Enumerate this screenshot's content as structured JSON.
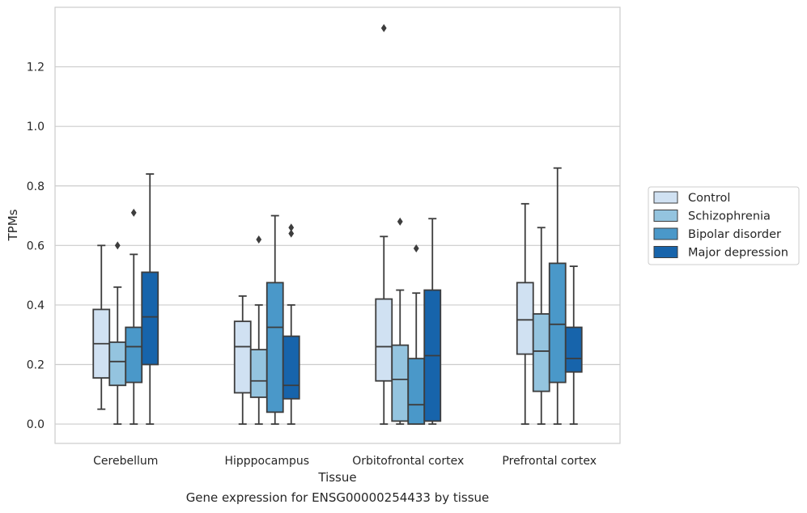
{
  "caption": "Gene expression for ENSG00000254433 by tissue",
  "chart_data": {
    "type": "box",
    "xlabel": "Tissue",
    "ylabel": "TPMs",
    "ylim": [
      -0.065,
      1.4
    ],
    "yticks": [
      0.0,
      0.2,
      0.4,
      0.6,
      0.8,
      1.0,
      1.2
    ],
    "ytick_labels": [
      "0.0",
      "0.2",
      "0.4",
      "0.6",
      "0.8",
      "1.0",
      "1.2"
    ],
    "grid": true,
    "legend_position": "right",
    "categories": [
      "Cerebellum",
      "Hipppocampus",
      "Orbitofrontal cortex",
      "Prefrontal cortex"
    ],
    "series": [
      {
        "name": "Control",
        "color": "#d0e1f2",
        "boxes": [
          {
            "whislo": 0.05,
            "q1": 0.155,
            "med": 0.27,
            "q3": 0.385,
            "whishi": 0.6,
            "fliers": []
          },
          {
            "whislo": 0.0,
            "q1": 0.105,
            "med": 0.26,
            "q3": 0.345,
            "whishi": 0.43,
            "fliers": []
          },
          {
            "whislo": 0.0,
            "q1": 0.145,
            "med": 0.26,
            "q3": 0.42,
            "whishi": 0.63,
            "fliers": [
              1.33
            ]
          },
          {
            "whislo": 0.0,
            "q1": 0.235,
            "med": 0.35,
            "q3": 0.475,
            "whishi": 0.74,
            "fliers": []
          }
        ]
      },
      {
        "name": "Schizophrenia",
        "color": "#94c4df",
        "boxes": [
          {
            "whislo": 0.0,
            "q1": 0.13,
            "med": 0.21,
            "q3": 0.275,
            "whishi": 0.46,
            "fliers": [
              0.6
            ]
          },
          {
            "whislo": 0.0,
            "q1": 0.09,
            "med": 0.145,
            "q3": 0.25,
            "whishi": 0.4,
            "fliers": [
              0.62
            ]
          },
          {
            "whislo": 0.0,
            "q1": 0.01,
            "med": 0.15,
            "q3": 0.265,
            "whishi": 0.45,
            "fliers": [
              0.68
            ]
          },
          {
            "whislo": 0.0,
            "q1": 0.11,
            "med": 0.245,
            "q3": 0.37,
            "whishi": 0.66,
            "fliers": []
          }
        ]
      },
      {
        "name": "Bipolar disorder",
        "color": "#4a98c9",
        "boxes": [
          {
            "whislo": 0.0,
            "q1": 0.14,
            "med": 0.26,
            "q3": 0.325,
            "whishi": 0.57,
            "fliers": [
              0.71
            ]
          },
          {
            "whislo": 0.0,
            "q1": 0.04,
            "med": 0.325,
            "q3": 0.475,
            "whishi": 0.7,
            "fliers": []
          },
          {
            "whislo": 0.0,
            "q1": 0.0,
            "med": 0.065,
            "q3": 0.22,
            "whishi": 0.44,
            "fliers": [
              0.59
            ]
          },
          {
            "whislo": 0.0,
            "q1": 0.14,
            "med": 0.335,
            "q3": 0.54,
            "whishi": 0.86,
            "fliers": []
          }
        ]
      },
      {
        "name": "Major depression",
        "color": "#1764ab",
        "boxes": [
          {
            "whislo": 0.0,
            "q1": 0.2,
            "med": 0.36,
            "q3": 0.51,
            "whishi": 0.84,
            "fliers": []
          },
          {
            "whislo": 0.0,
            "q1": 0.085,
            "med": 0.13,
            "q3": 0.295,
            "whishi": 0.4,
            "fliers": [
              0.64,
              0.66
            ]
          },
          {
            "whislo": 0.0,
            "q1": 0.01,
            "med": 0.23,
            "q3": 0.45,
            "whishi": 0.69,
            "fliers": []
          },
          {
            "whislo": 0.0,
            "q1": 0.175,
            "med": 0.22,
            "q3": 0.325,
            "whishi": 0.53,
            "fliers": []
          }
        ]
      }
    ]
  }
}
